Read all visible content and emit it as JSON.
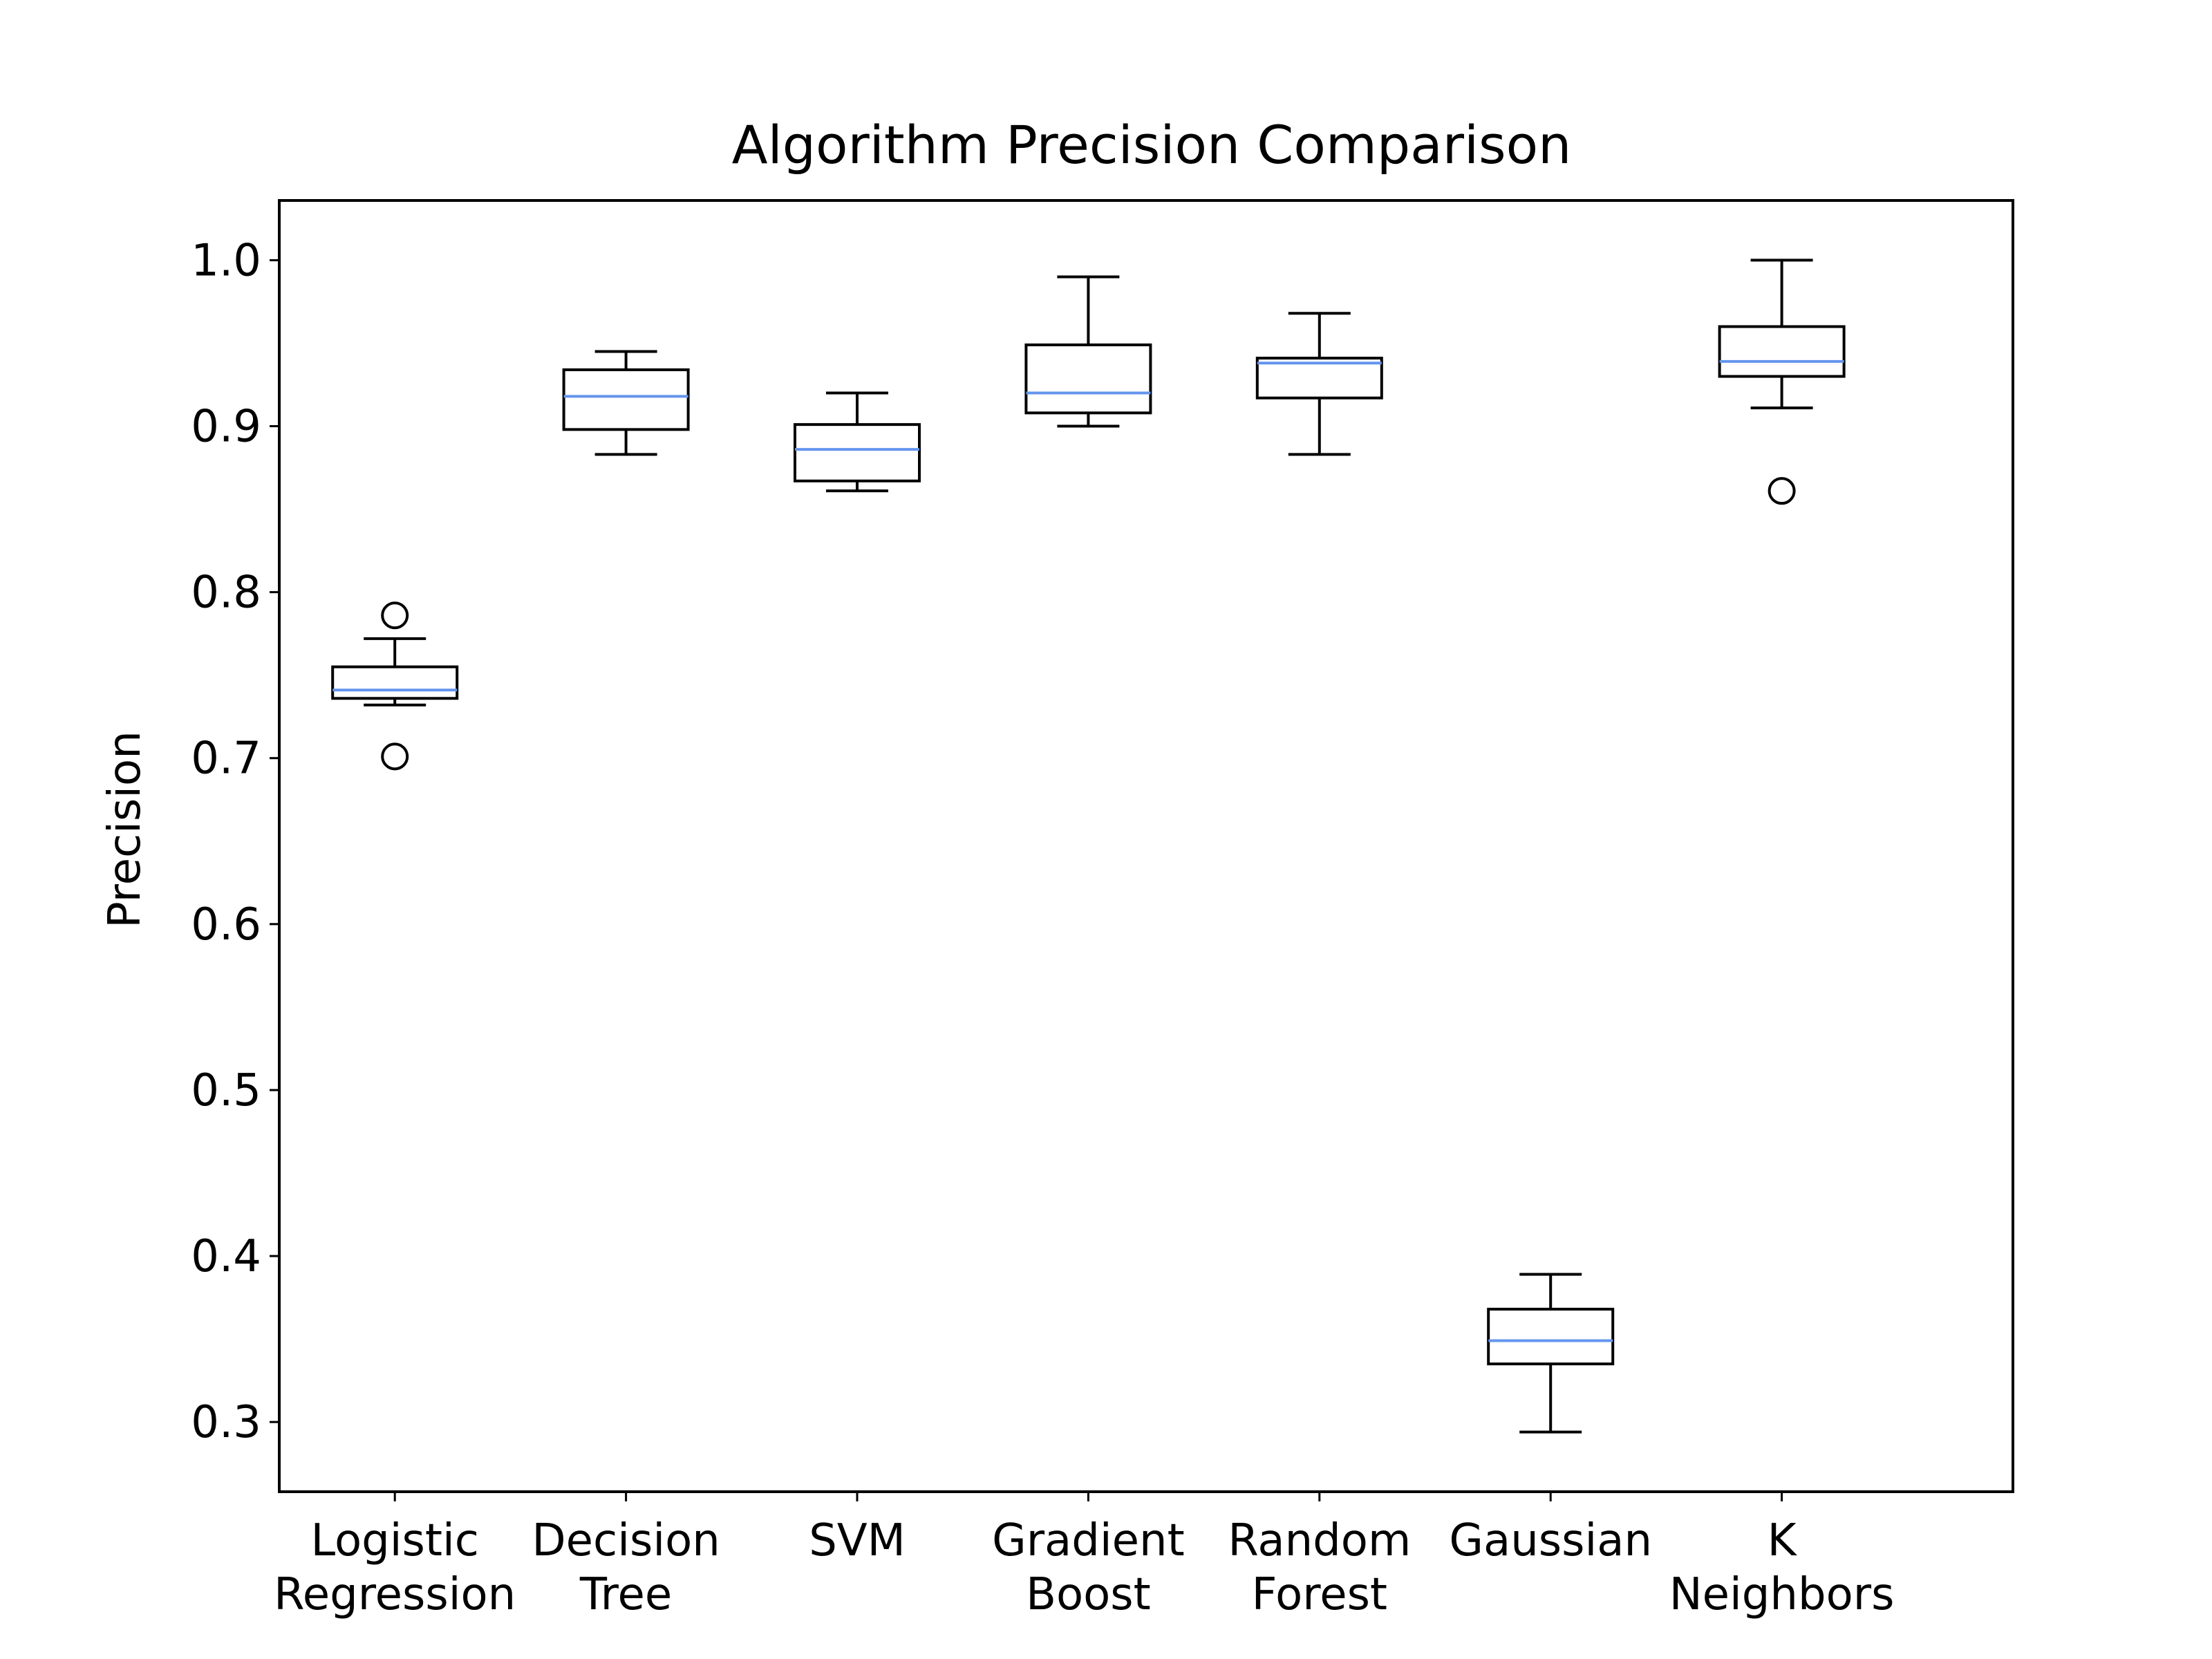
{
  "chart_data": {
    "type": "boxplot",
    "title": "Algorithm Precision Comparison",
    "xlabel": "",
    "ylabel": "Precision",
    "ylim": [
      0.258,
      1.036
    ],
    "yticks": [
      0.3,
      0.4,
      0.5,
      0.6,
      0.7,
      0.8,
      0.9,
      1.0
    ],
    "ytick_labels": [
      "0.3",
      "0.4",
      "0.5",
      "0.6",
      "0.7",
      "0.8",
      "0.9",
      "1.0"
    ],
    "grid": false,
    "colors": {
      "box": "#000000",
      "median": "#6495ED",
      "background": "#ffffff"
    },
    "categories": [
      "Logistic\nRegression",
      "Decision\nTree",
      "SVM",
      "Gradient\nBoost",
      "Random\nForest",
      "Gaussian",
      "K\nNeighbors"
    ],
    "boxes": [
      {
        "whisker_low": 0.732,
        "q1": 0.736,
        "median": 0.741,
        "q3": 0.755,
        "whisker_high": 0.772,
        "outliers": [
          0.786,
          0.701
        ]
      },
      {
        "whisker_low": 0.883,
        "q1": 0.898,
        "median": 0.918,
        "q3": 0.934,
        "whisker_high": 0.945,
        "outliers": []
      },
      {
        "whisker_low": 0.861,
        "q1": 0.867,
        "median": 0.886,
        "q3": 0.901,
        "whisker_high": 0.92,
        "outliers": []
      },
      {
        "whisker_low": 0.9,
        "q1": 0.908,
        "median": 0.92,
        "q3": 0.949,
        "whisker_high": 0.99,
        "outliers": []
      },
      {
        "whisker_low": 0.883,
        "q1": 0.917,
        "median": 0.938,
        "q3": 0.941,
        "whisker_high": 0.968,
        "outliers": []
      },
      {
        "whisker_low": 0.294,
        "q1": 0.335,
        "median": 0.349,
        "q3": 0.368,
        "whisker_high": 0.389,
        "outliers": []
      },
      {
        "whisker_low": 0.911,
        "q1": 0.93,
        "median": 0.939,
        "q3": 0.96,
        "whisker_high": 1.0,
        "outliers": [
          0.861
        ]
      }
    ]
  }
}
